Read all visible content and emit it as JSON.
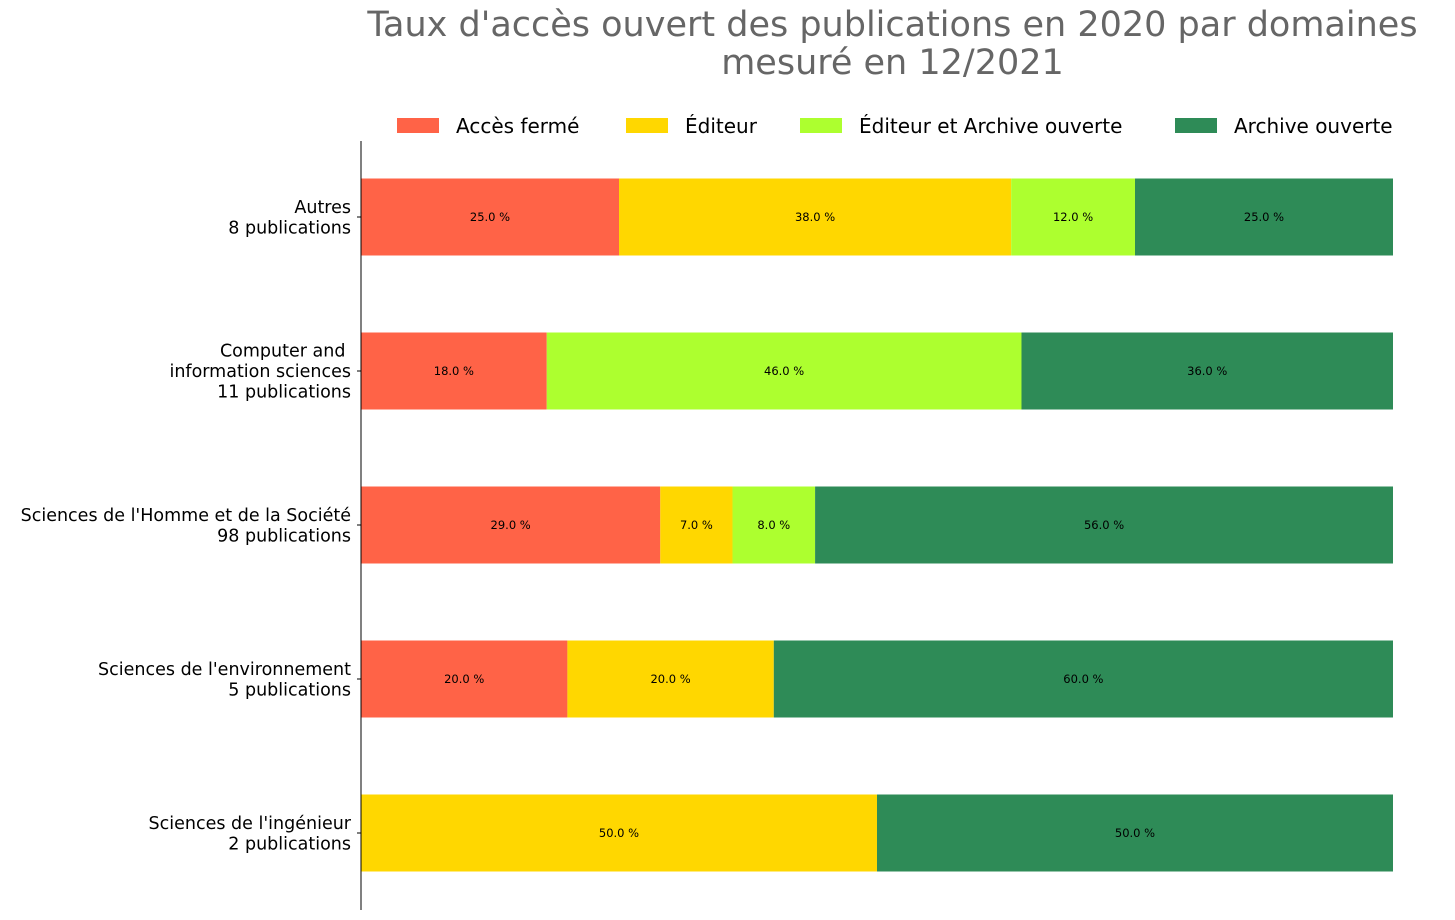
{
  "chart_data": {
    "type": "bar",
    "orientation": "horizontal",
    "stacked": true,
    "title_lines": [
      "Taux d'accès ouvert des publications en 2020 par domaines",
      "mesuré en 12/2021"
    ],
    "categories": [
      [
        "Autres",
        "8 publications"
      ],
      [
        "Computer and ",
        "information sciences",
        "11 publications"
      ],
      [
        "Sciences de l'Homme et de la Société",
        "98 publications"
      ],
      [
        "Sciences de l'environnement",
        "5 publications"
      ],
      [
        "Sciences de l'ingénieur",
        "2 publications"
      ]
    ],
    "series": [
      {
        "name": "Accès fermé",
        "color": "#ff6347",
        "values": [
          25.0,
          18.0,
          29.0,
          20.0,
          0
        ]
      },
      {
        "name": "Éditeur",
        "color": "#ffd700",
        "values": [
          38.0,
          0,
          7.0,
          20.0,
          50.0
        ]
      },
      {
        "name": "Éditeur et Archive ouverte",
        "color": "#adff2f",
        "values": [
          12.0,
          46.0,
          8.0,
          0,
          0
        ]
      },
      {
        "name": "Archive ouverte",
        "color": "#2e8b57",
        "values": [
          25.0,
          36.0,
          56.0,
          60.0,
          50.0
        ]
      }
    ],
    "value_label_suffix": " %",
    "xlim": [
      0,
      100
    ],
    "legend_position": "top",
    "grid": false,
    "x_axis_visible": false
  }
}
